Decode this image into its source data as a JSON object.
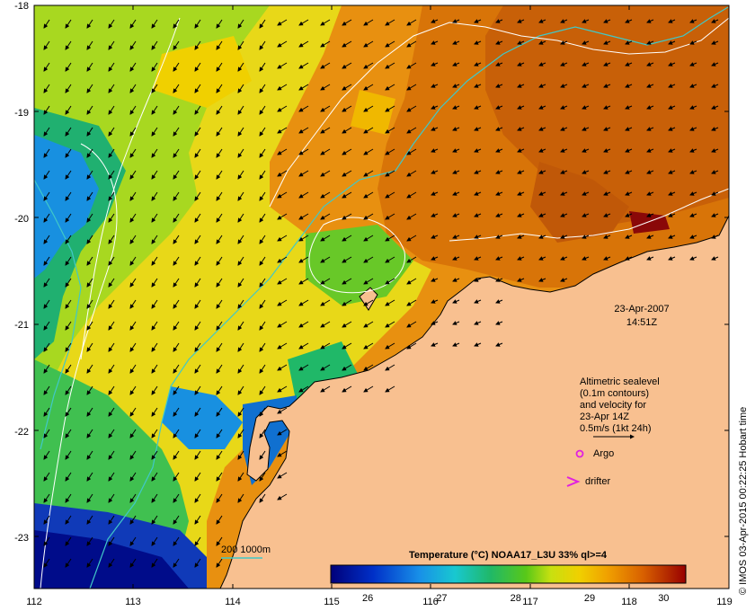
{
  "map": {
    "lon_ticks": [
      "112",
      "113",
      "114",
      "115",
      "116",
      "117",
      "118",
      "119"
    ],
    "lat_ticks": [
      "-18",
      "-19",
      "-20",
      "-21",
      "-22",
      "-23"
    ],
    "date": "23-Apr-2007",
    "time": "14:51Z",
    "legend": {
      "line1": "Altimetric sealevel",
      "line2": "(0.1m contours)",
      "line3": "and velocity for",
      "line4": "23-Apr 14Z",
      "line5": "0.5m/s (1kt 24h)",
      "argo": "Argo",
      "drifter": "drifter"
    },
    "isobath_label": "200  1000m",
    "credit": "© IMOS 03-Apr-2015 00:22:25 Hobart time",
    "colorbar": {
      "title": "Temperature (°C) NOAA17_L3U 33% ql>=4",
      "ticks": [
        "26",
        "27",
        "28",
        "29",
        "30"
      ],
      "range": [
        25.5,
        30.3
      ]
    },
    "colors": {
      "land": "#f8c090",
      "isobath": "#40c8c8",
      "argo": "#e020e0",
      "drifter": "#e020e0"
    }
  }
}
